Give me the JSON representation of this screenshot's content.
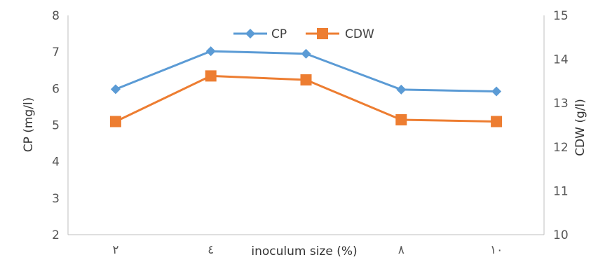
{
  "chart_data": {
    "type": "line",
    "categories": [
      "٢",
      "٤",
      "",
      "٨",
      "١٠"
    ],
    "xlabel": "inoculum size (%)",
    "y_left": {
      "label": "CP (mg/l)",
      "min": 2,
      "max": 8,
      "ticks": [
        "2",
        "3",
        "4",
        "5",
        "6",
        "7",
        "8"
      ]
    },
    "y_right": {
      "label": "CDW (g/l)",
      "min": 10,
      "max": 15,
      "ticks": [
        "10",
        "11",
        "12",
        "13",
        "14",
        "15"
      ]
    },
    "series": [
      {
        "name": "CP",
        "axis": "left",
        "color": "#5b9bd5",
        "marker": "diamond",
        "values": [
          5.98,
          7.02,
          6.95,
          5.97,
          5.92
        ]
      },
      {
        "name": "CDW",
        "axis": "right",
        "color": "#ed7d31",
        "marker": "square",
        "values": [
          12.58,
          13.62,
          13.53,
          12.62,
          12.58
        ]
      }
    ],
    "legend": "top-center",
    "grid": false
  }
}
